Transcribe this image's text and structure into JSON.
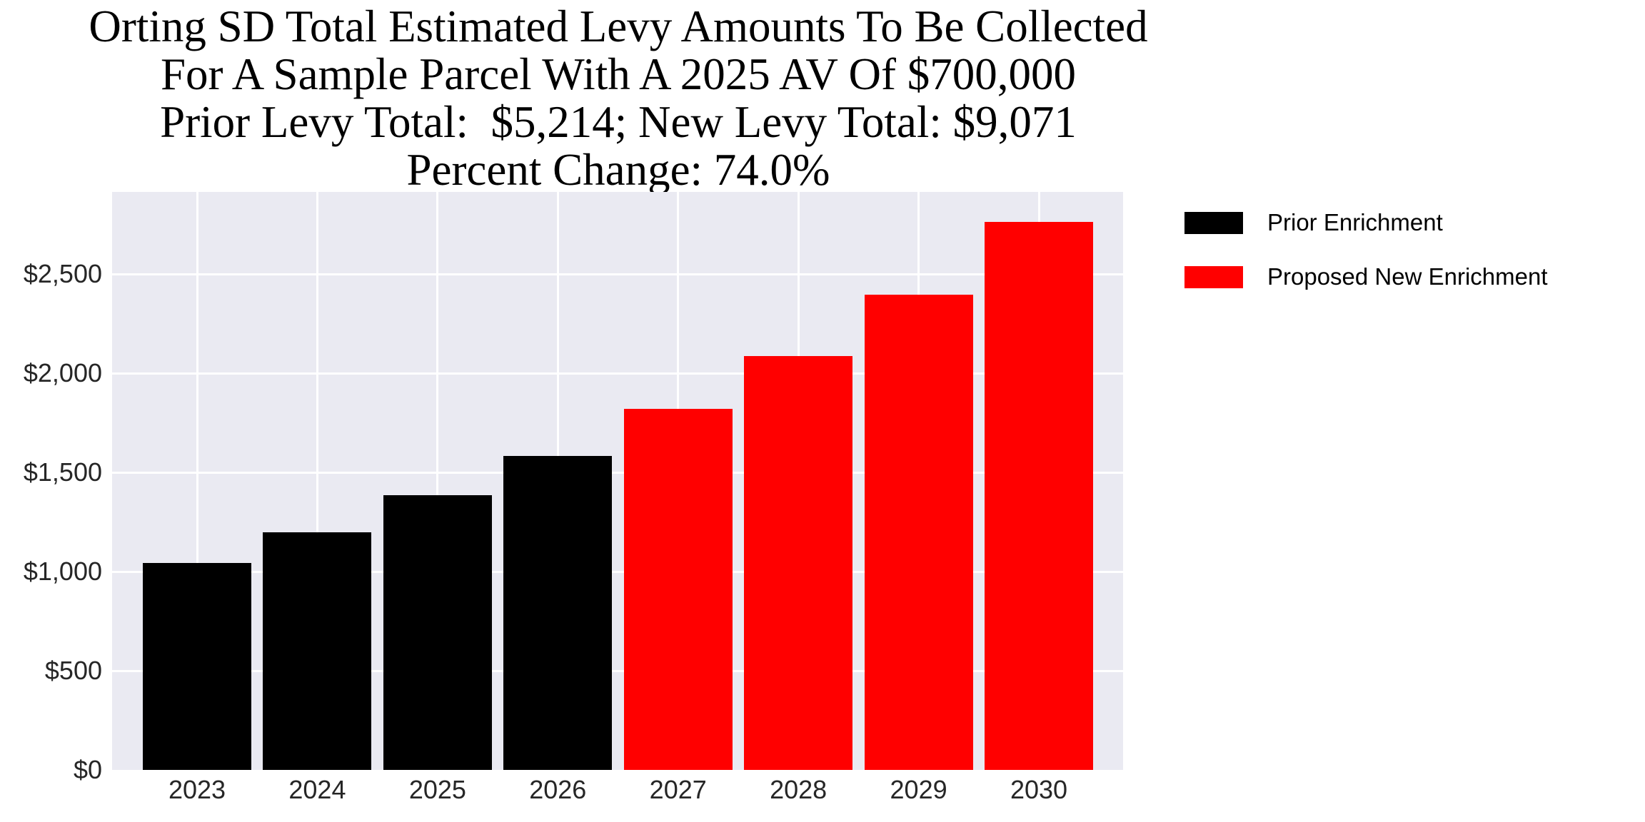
{
  "title": {
    "line1": "Orting SD Total Estimated Levy Amounts To Be Collected",
    "line2": "For A Sample Parcel With A 2025 AV Of $700,000",
    "line3": "Prior Levy Total:  $5,214; New Levy Total: $9,071",
    "line4": "Percent Change: 74.0%"
  },
  "legend": {
    "items": [
      {
        "label": "Prior Enrichment",
        "color": "#000000"
      },
      {
        "label": "Proposed New Enrichment",
        "color": "#ff0000"
      }
    ]
  },
  "chart_data": {
    "type": "bar",
    "title": "Orting SD Total Estimated Levy Amounts To Be Collected For A Sample Parcel With A 2025 AV Of $700,000; Prior Levy Total: $5,214; New Levy Total: $9,071; Percent Change: 74.0%",
    "categories": [
      "2023",
      "2024",
      "2025",
      "2026",
      "2027",
      "2028",
      "2029",
      "2030"
    ],
    "series": [
      {
        "name": "Prior Enrichment",
        "color": "#000000",
        "values": [
          1045,
          1200,
          1385,
          1584,
          null,
          null,
          null,
          null
        ]
      },
      {
        "name": "Proposed New Enrichment",
        "color": "#ff0000",
        "values": [
          null,
          null,
          null,
          null,
          1822,
          2086,
          2398,
          2765
        ]
      }
    ],
    "bars": [
      {
        "year": "2023",
        "value": 1045,
        "series": "Prior Enrichment",
        "color": "#000000"
      },
      {
        "year": "2024",
        "value": 1200,
        "series": "Prior Enrichment",
        "color": "#000000"
      },
      {
        "year": "2025",
        "value": 1385,
        "series": "Prior Enrichment",
        "color": "#000000"
      },
      {
        "year": "2026",
        "value": 1584,
        "series": "Prior Enrichment",
        "color": "#000000"
      },
      {
        "year": "2027",
        "value": 1822,
        "series": "Proposed New Enrichment",
        "color": "#ff0000"
      },
      {
        "year": "2028",
        "value": 2086,
        "series": "Proposed New Enrichment",
        "color": "#ff0000"
      },
      {
        "year": "2029",
        "value": 2398,
        "series": "Proposed New Enrichment",
        "color": "#ff0000"
      },
      {
        "year": "2030",
        "value": 2765,
        "series": "Proposed New Enrichment",
        "color": "#ff0000"
      }
    ],
    "prior_levy_total": "$5,214",
    "new_levy_total": "$9,071",
    "percent_change": "74.0%",
    "y_ticks": [
      {
        "value": 0,
        "label": "$0"
      },
      {
        "value": 500,
        "label": "$500"
      },
      {
        "value": 1000,
        "label": "$1,000"
      },
      {
        "value": 1500,
        "label": "$1,500"
      },
      {
        "value": 2000,
        "label": "$2,000"
      },
      {
        "value": 2500,
        "label": "$2,500"
      }
    ],
    "xlabel": "",
    "ylabel": "",
    "ylim": [
      0,
      2915
    ],
    "grid": true,
    "plot_bg": "#eaeaf2",
    "grid_color": "#ffffff",
    "legend_position": "outside-upper-right"
  }
}
